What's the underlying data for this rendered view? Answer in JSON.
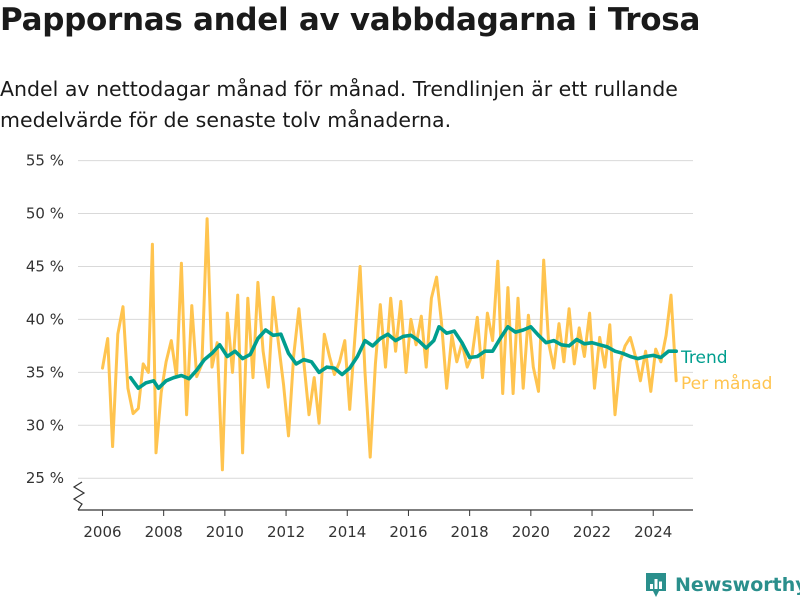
{
  "title": "Pappornas andel av vabbdagarna i Trosa",
  "subtitle": "Andel av nettodagar månad för månad. Trendlinjen är ett rullande medelvärde för de senaste tolv månaderna.",
  "brand": {
    "name": "Newsworthy",
    "icon": "newsworthy-logo-icon"
  },
  "colors": {
    "monthly": "#ffc44f",
    "trend": "#009e8e",
    "grid": "#d9d9d9",
    "axis": "#333333"
  },
  "chart_data": {
    "type": "line",
    "title": "Pappornas andel av vabbdagarna i Trosa",
    "xlabel": "",
    "ylabel": "",
    "xlim": [
      2005.2,
      2025.3
    ],
    "ylim": [
      22,
      56
    ],
    "axis_break": true,
    "grid": "horizontal",
    "legend": "direct labels right",
    "x_ticks": [
      2006,
      2008,
      2010,
      2012,
      2014,
      2016,
      2018,
      2020,
      2022,
      2024
    ],
    "x_tick_labels": [
      "2006",
      "2008",
      "2010",
      "2012",
      "2014",
      "2016",
      "2018",
      "2020",
      "2022",
      "2024"
    ],
    "y_ticks": [
      25,
      30,
      35,
      40,
      45,
      50,
      55
    ],
    "y_tick_labels": [
      "25 %",
      "30 %",
      "35 %",
      "40 %",
      "45 %",
      "50 %",
      "55 %"
    ],
    "series": [
      {
        "name": "Per månad",
        "color": "#ffc44f",
        "points": [
          [
            2006.0,
            35.4
          ],
          [
            2006.17,
            38.2
          ],
          [
            2006.33,
            28.0
          ],
          [
            2006.5,
            38.6
          ],
          [
            2006.67,
            41.2
          ],
          [
            2006.83,
            33.5
          ],
          [
            2007.0,
            31.1
          ],
          [
            2007.17,
            31.6
          ],
          [
            2007.33,
            35.8
          ],
          [
            2007.5,
            35.0
          ],
          [
            2007.63,
            47.1
          ],
          [
            2007.75,
            27.4
          ],
          [
            2007.92,
            33.1
          ],
          [
            2008.08,
            36.0
          ],
          [
            2008.25,
            38.0
          ],
          [
            2008.42,
            34.6
          ],
          [
            2008.58,
            45.3
          ],
          [
            2008.75,
            31.0
          ],
          [
            2008.92,
            41.3
          ],
          [
            2009.08,
            34.6
          ],
          [
            2009.25,
            35.8
          ],
          [
            2009.42,
            49.5
          ],
          [
            2009.58,
            35.5
          ],
          [
            2009.75,
            37.8
          ],
          [
            2009.92,
            25.8
          ],
          [
            2010.08,
            40.6
          ],
          [
            2010.25,
            35.0
          ],
          [
            2010.42,
            42.3
          ],
          [
            2010.58,
            27.4
          ],
          [
            2010.75,
            42.0
          ],
          [
            2010.92,
            34.5
          ],
          [
            2011.08,
            43.5
          ],
          [
            2011.25,
            37.0
          ],
          [
            2011.42,
            33.6
          ],
          [
            2011.58,
            42.1
          ],
          [
            2011.75,
            37.8
          ],
          [
            2011.92,
            33.8
          ],
          [
            2012.08,
            29.0
          ],
          [
            2012.25,
            36.6
          ],
          [
            2012.42,
            41.0
          ],
          [
            2012.58,
            36.0
          ],
          [
            2012.75,
            31.0
          ],
          [
            2012.92,
            34.5
          ],
          [
            2013.08,
            30.2
          ],
          [
            2013.25,
            38.6
          ],
          [
            2013.42,
            36.5
          ],
          [
            2013.58,
            34.8
          ],
          [
            2013.75,
            36.0
          ],
          [
            2013.92,
            38.0
          ],
          [
            2014.08,
            31.5
          ],
          [
            2014.25,
            38.3
          ],
          [
            2014.42,
            45.0
          ],
          [
            2014.58,
            35.0
          ],
          [
            2014.75,
            27.0
          ],
          [
            2014.92,
            35.8
          ],
          [
            2015.08,
            41.4
          ],
          [
            2015.25,
            35.5
          ],
          [
            2015.42,
            42.0
          ],
          [
            2015.58,
            37.0
          ],
          [
            2015.75,
            41.7
          ],
          [
            2015.92,
            35.0
          ],
          [
            2016.08,
            40.0
          ],
          [
            2016.25,
            37.6
          ],
          [
            2016.42,
            40.3
          ],
          [
            2016.58,
            35.5
          ],
          [
            2016.75,
            42.0
          ],
          [
            2016.92,
            44.0
          ],
          [
            2017.08,
            39.7
          ],
          [
            2017.25,
            33.5
          ],
          [
            2017.42,
            38.5
          ],
          [
            2017.58,
            36.0
          ],
          [
            2017.75,
            37.8
          ],
          [
            2017.92,
            35.5
          ],
          [
            2018.08,
            36.6
          ],
          [
            2018.25,
            40.2
          ],
          [
            2018.42,
            34.5
          ],
          [
            2018.58,
            40.6
          ],
          [
            2018.75,
            38.0
          ],
          [
            2018.92,
            45.5
          ],
          [
            2019.08,
            33.0
          ],
          [
            2019.25,
            43.0
          ],
          [
            2019.42,
            33.0
          ],
          [
            2019.58,
            42.0
          ],
          [
            2019.75,
            33.5
          ],
          [
            2019.92,
            40.4
          ],
          [
            2020.08,
            35.5
          ],
          [
            2020.25,
            33.2
          ],
          [
            2020.42,
            45.6
          ],
          [
            2020.58,
            37.8
          ],
          [
            2020.75,
            35.4
          ],
          [
            2020.92,
            39.6
          ],
          [
            2021.08,
            36.0
          ],
          [
            2021.25,
            41.0
          ],
          [
            2021.42,
            35.8
          ],
          [
            2021.58,
            39.2
          ],
          [
            2021.75,
            36.5
          ],
          [
            2021.92,
            40.6
          ],
          [
            2022.08,
            33.5
          ],
          [
            2022.25,
            38.3
          ],
          [
            2022.42,
            35.5
          ],
          [
            2022.58,
            39.5
          ],
          [
            2022.75,
            31.0
          ],
          [
            2022.92,
            36.0
          ],
          [
            2023.08,
            37.5
          ],
          [
            2023.25,
            38.3
          ],
          [
            2023.42,
            36.5
          ],
          [
            2023.58,
            34.2
          ],
          [
            2023.75,
            37.0
          ],
          [
            2023.92,
            33.2
          ],
          [
            2024.08,
            37.2
          ],
          [
            2024.25,
            36.0
          ],
          [
            2024.42,
            38.5
          ],
          [
            2024.58,
            42.3
          ],
          [
            2024.75,
            34.2
          ]
        ]
      },
      {
        "name": "Trend",
        "color": "#009e8e",
        "points": [
          [
            2006.92,
            34.5
          ],
          [
            2007.17,
            33.5
          ],
          [
            2007.42,
            34.0
          ],
          [
            2007.67,
            34.2
          ],
          [
            2007.83,
            33.5
          ],
          [
            2008.08,
            34.2
          ],
          [
            2008.33,
            34.5
          ],
          [
            2008.58,
            34.7
          ],
          [
            2008.83,
            34.4
          ],
          [
            2009.08,
            35.2
          ],
          [
            2009.33,
            36.2
          ],
          [
            2009.58,
            36.8
          ],
          [
            2009.83,
            37.6
          ],
          [
            2010.08,
            36.5
          ],
          [
            2010.33,
            37.0
          ],
          [
            2010.58,
            36.3
          ],
          [
            2010.83,
            36.7
          ],
          [
            2011.08,
            38.2
          ],
          [
            2011.33,
            39.0
          ],
          [
            2011.58,
            38.5
          ],
          [
            2011.83,
            38.6
          ],
          [
            2012.08,
            36.8
          ],
          [
            2012.33,
            35.8
          ],
          [
            2012.58,
            36.2
          ],
          [
            2012.83,
            36.0
          ],
          [
            2013.08,
            35.0
          ],
          [
            2013.33,
            35.5
          ],
          [
            2013.58,
            35.4
          ],
          [
            2013.83,
            34.8
          ],
          [
            2014.08,
            35.4
          ],
          [
            2014.33,
            36.5
          ],
          [
            2014.58,
            38.0
          ],
          [
            2014.83,
            37.5
          ],
          [
            2015.08,
            38.2
          ],
          [
            2015.33,
            38.6
          ],
          [
            2015.58,
            38.0
          ],
          [
            2015.83,
            38.4
          ],
          [
            2016.08,
            38.5
          ],
          [
            2016.33,
            38.0
          ],
          [
            2016.58,
            37.3
          ],
          [
            2016.83,
            38.0
          ],
          [
            2017.0,
            39.3
          ],
          [
            2017.25,
            38.7
          ],
          [
            2017.5,
            38.9
          ],
          [
            2017.75,
            37.8
          ],
          [
            2018.0,
            36.4
          ],
          [
            2018.25,
            36.5
          ],
          [
            2018.5,
            37.0
          ],
          [
            2018.75,
            37.0
          ],
          [
            2019.0,
            38.2
          ],
          [
            2019.25,
            39.3
          ],
          [
            2019.5,
            38.8
          ],
          [
            2019.75,
            39.0
          ],
          [
            2020.0,
            39.3
          ],
          [
            2020.25,
            38.5
          ],
          [
            2020.5,
            37.8
          ],
          [
            2020.75,
            38.0
          ],
          [
            2021.0,
            37.6
          ],
          [
            2021.25,
            37.5
          ],
          [
            2021.5,
            38.1
          ],
          [
            2021.75,
            37.7
          ],
          [
            2022.0,
            37.8
          ],
          [
            2022.25,
            37.6
          ],
          [
            2022.5,
            37.4
          ],
          [
            2022.75,
            37.0
          ],
          [
            2023.0,
            36.8
          ],
          [
            2023.25,
            36.5
          ],
          [
            2023.5,
            36.3
          ],
          [
            2023.75,
            36.5
          ],
          [
            2024.0,
            36.6
          ],
          [
            2024.25,
            36.4
          ],
          [
            2024.5,
            37.0
          ],
          [
            2024.75,
            37.0
          ]
        ]
      }
    ]
  }
}
